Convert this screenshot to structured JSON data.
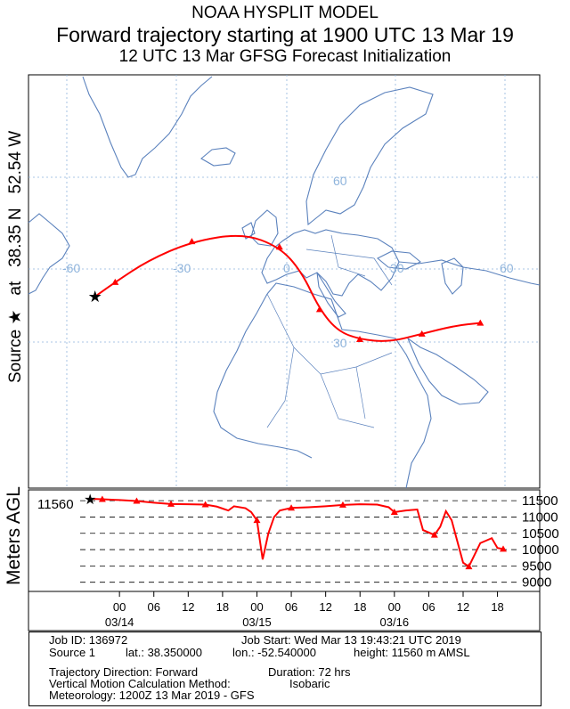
{
  "header": {
    "line1": "NOAA HYSPLIT MODEL",
    "line2": "Forward trajectory starting at 1900 UTC 13 Mar 19",
    "line3": "12 UTC 13 Mar     GFSG  Forecast Initialization"
  },
  "side_label": {
    "source": "Source",
    "star": "★",
    "at": "at",
    "lat": "38.35 N",
    "lon": "52.54 W"
  },
  "map": {
    "grid_labels": {
      "lon_m60": "-60",
      "lon_m30": "-30",
      "lon_0": "0",
      "lon_30": "30",
      "lon_60": "60",
      "lat_30": "30",
      "lat_60": "60"
    },
    "colors": {
      "coast": "#5b82bd",
      "grid": "#8fb4dc",
      "trajectory": "#ff0000"
    }
  },
  "chart_data": [
    {
      "type": "line",
      "panel": "map",
      "projection": "polar stereographic",
      "series": [
        {
          "values": [
            {
              "lon": -52.54,
              "lat": 38.35
            },
            {
              "lon": -47.0,
              "lat": 41.0
            },
            {
              "lon": -38.0,
              "lat": 45.0
            },
            {
              "lon": -26.0,
              "lat": 48.5
            },
            {
              "lon": -12.0,
              "lat": 50.0
            },
            {
              "lon": -2.0,
              "lat": 47.5
            },
            {
              "lon": 4.0,
              "lat": 43.0
            },
            {
              "lon": 9.0,
              "lat": 36.0
            },
            {
              "lon": 14.0,
              "lat": 32.0
            },
            {
              "lon": 20.0,
              "lat": 30.5
            },
            {
              "lon": 28.0,
              "lat": 30.0
            },
            {
              "lon": 37.0,
              "lat": 31.5
            },
            {
              "lon": 46.0,
              "lat": 33.0
            },
            {
              "lon": 53.0,
              "lat": 33.5
            }
          ]
        }
      ]
    },
    {
      "type": "line",
      "panel": "height",
      "ylabel": "Meters AGL",
      "ylim": [
        8800,
        11750
      ],
      "y_ticks": [
        9000,
        9500,
        10000,
        10500,
        11000,
        11500
      ],
      "start_label": "11560",
      "x_ticks": [
        "00",
        "06",
        "12",
        "18",
        "00",
        "06",
        "12",
        "18",
        "00",
        "06",
        "12",
        "18"
      ],
      "x_tick_hours": [
        5,
        11,
        17,
        23,
        29,
        35,
        41,
        47,
        53,
        59,
        65,
        71
      ],
      "date_labels": [
        {
          "label": "03/14",
          "hour": 5
        },
        {
          "label": "03/15",
          "hour": 29
        },
        {
          "label": "03/16",
          "hour": 53
        }
      ],
      "series": [
        {
          "values": [
            [
              0,
              11560
            ],
            [
              2,
              11545
            ],
            [
              5,
              11520
            ],
            [
              8,
              11490
            ],
            [
              11,
              11440
            ],
            [
              14,
              11400
            ],
            [
              17,
              11390
            ],
            [
              20,
              11380
            ],
            [
              22,
              11320
            ],
            [
              24,
              11200
            ],
            [
              25,
              11330
            ],
            [
              27,
              11270
            ],
            [
              28,
              11150
            ],
            [
              29,
              10900
            ],
            [
              30,
              9700
            ],
            [
              31,
              10500
            ],
            [
              32,
              11000
            ],
            [
              33,
              11200
            ],
            [
              35,
              11280
            ],
            [
              38,
              11300
            ],
            [
              41,
              11330
            ],
            [
              44,
              11370
            ],
            [
              47,
              11390
            ],
            [
              50,
              11380
            ],
            [
              52,
              11300
            ],
            [
              53,
              11150
            ],
            [
              55,
              11200
            ],
            [
              57,
              11230
            ],
            [
              58,
              10600
            ],
            [
              60,
              10450
            ],
            [
              61,
              10700
            ],
            [
              62,
              11180
            ],
            [
              63,
              10900
            ],
            [
              65,
              9600
            ],
            [
              66,
              9480
            ],
            [
              68,
              10200
            ],
            [
              70,
              10350
            ],
            [
              71,
              10050
            ],
            [
              72,
              10020
            ]
          ]
        }
      ]
    }
  ],
  "info": {
    "job_id": "Job ID: 136972",
    "job_start": "Job Start: Wed Mar 13 19:43:21 UTC 2019",
    "source": "Source 1",
    "lat": "lat.: 38.350000",
    "lon": "lon.: -52.540000",
    "height": "height: 11560 m AMSL",
    "direction": "Trajectory Direction: Forward",
    "duration": "Duration: 72 hrs",
    "vertical": "Vertical Motion Calculation Method:",
    "isobaric": "Isobaric",
    "meteorology": "Meteorology: 1200Z 13 Mar 2019 - GFS"
  }
}
